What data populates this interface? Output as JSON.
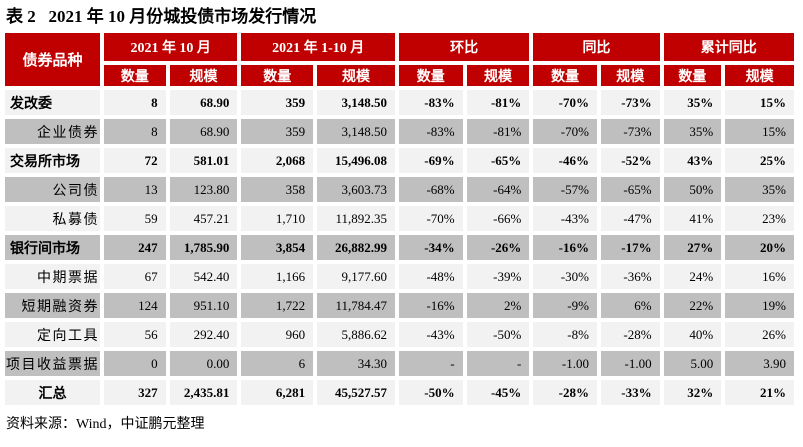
{
  "page": {
    "title": "表 2   2021 年 10 月份城投债市场发行情况",
    "source_note": "资料来源：Wind，中证鹏元整理"
  },
  "colors": {
    "header_red": "#C00000",
    "row_light": "#F2F2F2",
    "row_dark": "#BFBFBF",
    "header_text": "#FFFFFF",
    "text": "#000000"
  },
  "table": {
    "corner_header": "债券品种",
    "groups": [
      {
        "label": "2021 年 10 月"
      },
      {
        "label": "2021 年 1-10 月"
      },
      {
        "label": "环比"
      },
      {
        "label": "同比"
      },
      {
        "label": "累计同比"
      }
    ],
    "subheaders": [
      "数量",
      "规模",
      "数量",
      "规模",
      "数量",
      "规模",
      "数量",
      "规模",
      "数量",
      "规模"
    ],
    "rows": [
      {
        "label": "发改委",
        "type": "section",
        "values": [
          "8",
          "68.90",
          "359",
          "3,148.50",
          "-83%",
          "-81%",
          "-70%",
          "-73%",
          "35%",
          "15%"
        ]
      },
      {
        "label": "企业债券",
        "type": "sub",
        "values": [
          "8",
          "68.90",
          "359",
          "3,148.50",
          "-83%",
          "-81%",
          "-70%",
          "-73%",
          "35%",
          "15%"
        ]
      },
      {
        "label": "交易所市场",
        "type": "section",
        "values": [
          "72",
          "581.01",
          "2,068",
          "15,496.08",
          "-69%",
          "-65%",
          "-46%",
          "-52%",
          "43%",
          "25%"
        ]
      },
      {
        "label": "公司债",
        "type": "sub",
        "values": [
          "13",
          "123.80",
          "358",
          "3,603.73",
          "-68%",
          "-64%",
          "-57%",
          "-65%",
          "50%",
          "35%"
        ]
      },
      {
        "label": "私募债",
        "type": "sub",
        "values": [
          "59",
          "457.21",
          "1,710",
          "11,892.35",
          "-70%",
          "-66%",
          "-43%",
          "-47%",
          "41%",
          "23%"
        ]
      },
      {
        "label": "银行间市场",
        "type": "section",
        "values": [
          "247",
          "1,785.90",
          "3,854",
          "26,882.99",
          "-34%",
          "-26%",
          "-16%",
          "-17%",
          "27%",
          "20%"
        ]
      },
      {
        "label": "中期票据",
        "type": "sub",
        "values": [
          "67",
          "542.40",
          "1,166",
          "9,177.60",
          "-48%",
          "-39%",
          "-30%",
          "-36%",
          "24%",
          "16%"
        ]
      },
      {
        "label": "短期融资券",
        "type": "sub",
        "values": [
          "124",
          "951.10",
          "1,722",
          "11,784.47",
          "-16%",
          "2%",
          "-9%",
          "6%",
          "22%",
          "19%"
        ]
      },
      {
        "label": "定向工具",
        "type": "sub",
        "values": [
          "56",
          "292.40",
          "960",
          "5,886.62",
          "-43%",
          "-50%",
          "-8%",
          "-28%",
          "40%",
          "26%"
        ]
      },
      {
        "label": "项目收益票据",
        "type": "sub",
        "values": [
          "0",
          "0.00",
          "6",
          "34.30",
          "-",
          "-",
          "-1.00",
          "-1.00",
          "5.00",
          "3.90"
        ]
      },
      {
        "label": "汇总",
        "type": "total",
        "values": [
          "327",
          "2,435.81",
          "6,281",
          "45,527.57",
          "-50%",
          "-45%",
          "-28%",
          "-33%",
          "32%",
          "21%"
        ]
      }
    ]
  }
}
